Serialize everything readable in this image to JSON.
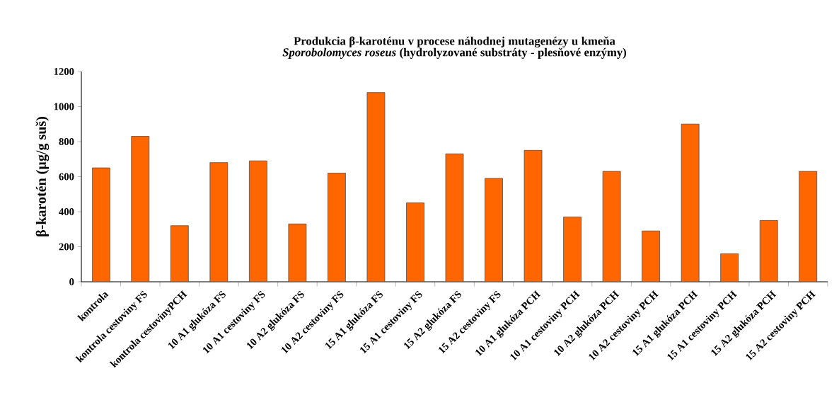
{
  "chart_data": {
    "type": "bar",
    "title": "Produkcia β-karoténu v procese náhodnej mutagenézy u kmeňa *Sporobolomyces roseus* (hydrolyzované substráty - plesňové enzýmy)",
    "ylabel": "β-karotén (µg/g suš)",
    "categories": [
      "kontrola",
      "kontrola cestoviny FS",
      "kontrola cestovinyPCH",
      "10 A1 glukóza FS",
      "10 A1 cestoviny FS",
      "10 A2 glukóza FS",
      "10 A2 cestoviny FS",
      "15 A1 glukóza FS",
      "15 A1 cestoviny FS",
      "15 A2 glukóza FS",
      "15 A2 cestoviny FS",
      "10 A1 glukóza PCH",
      "10 A1 cestoviny PCH",
      "10 A2 glukóza PCH",
      "10 A2 cestoviny PCH",
      "15 A1 glukóza PCH",
      "15 A1 cestoviny PCH",
      "15 A2 glukóza PCH",
      "15 A2 cestoviny PCH"
    ],
    "values": [
      650,
      830,
      320,
      680,
      690,
      330,
      620,
      1080,
      450,
      730,
      590,
      750,
      370,
      630,
      290,
      900,
      160,
      350,
      630
    ],
    "color": "#ff6600",
    "ylim": [
      0,
      1200
    ],
    "yticks": [
      0,
      200,
      400,
      600,
      800,
      1000,
      1200
    ],
    "grid": false
  }
}
